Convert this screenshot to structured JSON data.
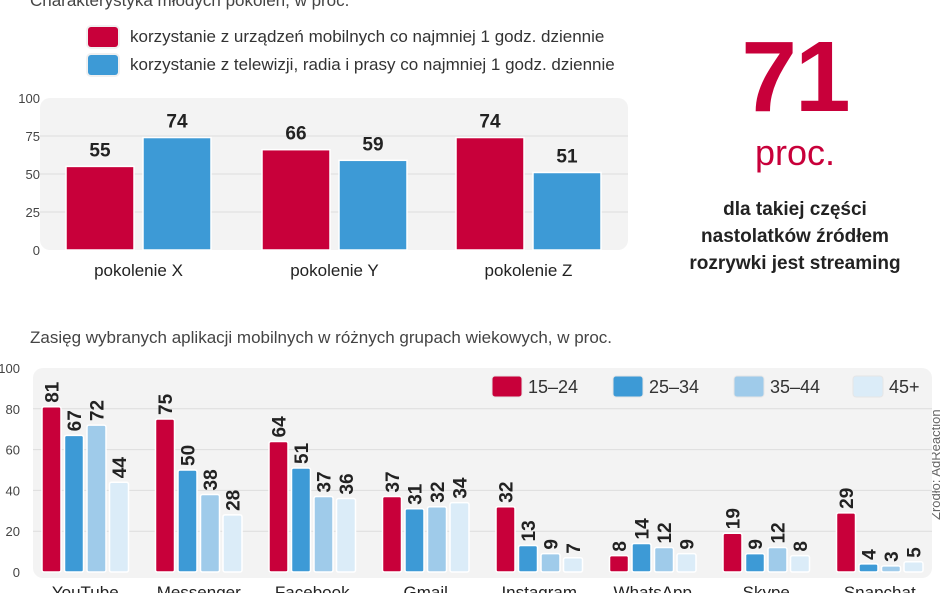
{
  "chart_data": [
    {
      "type": "bar",
      "title": "Charakterystyka młodych pokoleń, w proc.",
      "categories": [
        "pokolenie X",
        "pokolenie Y",
        "pokolenie Z"
      ],
      "series": [
        {
          "name": "korzystanie z urządzeń mobilnych co najmniej 1 godz. dziennie",
          "values": [
            55,
            66,
            74
          ],
          "color": "#c8003a"
        },
        {
          "name": "korzystanie z telewizji, radia i prasy co najmniej 1 godz. dziennie",
          "values": [
            74,
            59,
            51
          ],
          "color": "#3d9ad6"
        }
      ],
      "yticks": [
        "0",
        "25",
        "50",
        "75",
        "100"
      ],
      "ylim": [
        0,
        100
      ],
      "grid": true,
      "legend": "top"
    },
    {
      "type": "bar",
      "title": "Zasięg wybranych aplikacji mobilnych w różnych grupach wiekowych, w proc.",
      "categories": [
        "YouTube",
        "Messenger",
        "Facebook",
        "Gmail",
        "Instagram",
        "WhatsApp",
        "Skype",
        "Snapchat"
      ],
      "series": [
        {
          "name": "15–24",
          "values": [
            81,
            75,
            64,
            37,
            32,
            8,
            19,
            29
          ],
          "color": "#c8003a"
        },
        {
          "name": "25–34",
          "values": [
            67,
            50,
            51,
            31,
            13,
            14,
            9,
            4
          ],
          "color": "#3d9ad6"
        },
        {
          "name": "35–44",
          "values": [
            72,
            38,
            37,
            32,
            9,
            12,
            12,
            3
          ],
          "color": "#9fcbea"
        },
        {
          "name": "45+",
          "values": [
            44,
            28,
            36,
            34,
            7,
            9,
            8,
            5
          ],
          "color": "#dbecf8"
        }
      ],
      "yticks": [
        "0",
        "20",
        "40",
        "60",
        "80",
        "100"
      ],
      "ylim": [
        0,
        100
      ],
      "grid": true,
      "legend": "top-right"
    }
  ],
  "highlight": {
    "number": "71",
    "unit": "proc.",
    "description": [
      "dla takiej części",
      "nastolatków źródłem",
      "rozrywki jest streaming"
    ]
  },
  "source": "Źródło: AdReaction"
}
